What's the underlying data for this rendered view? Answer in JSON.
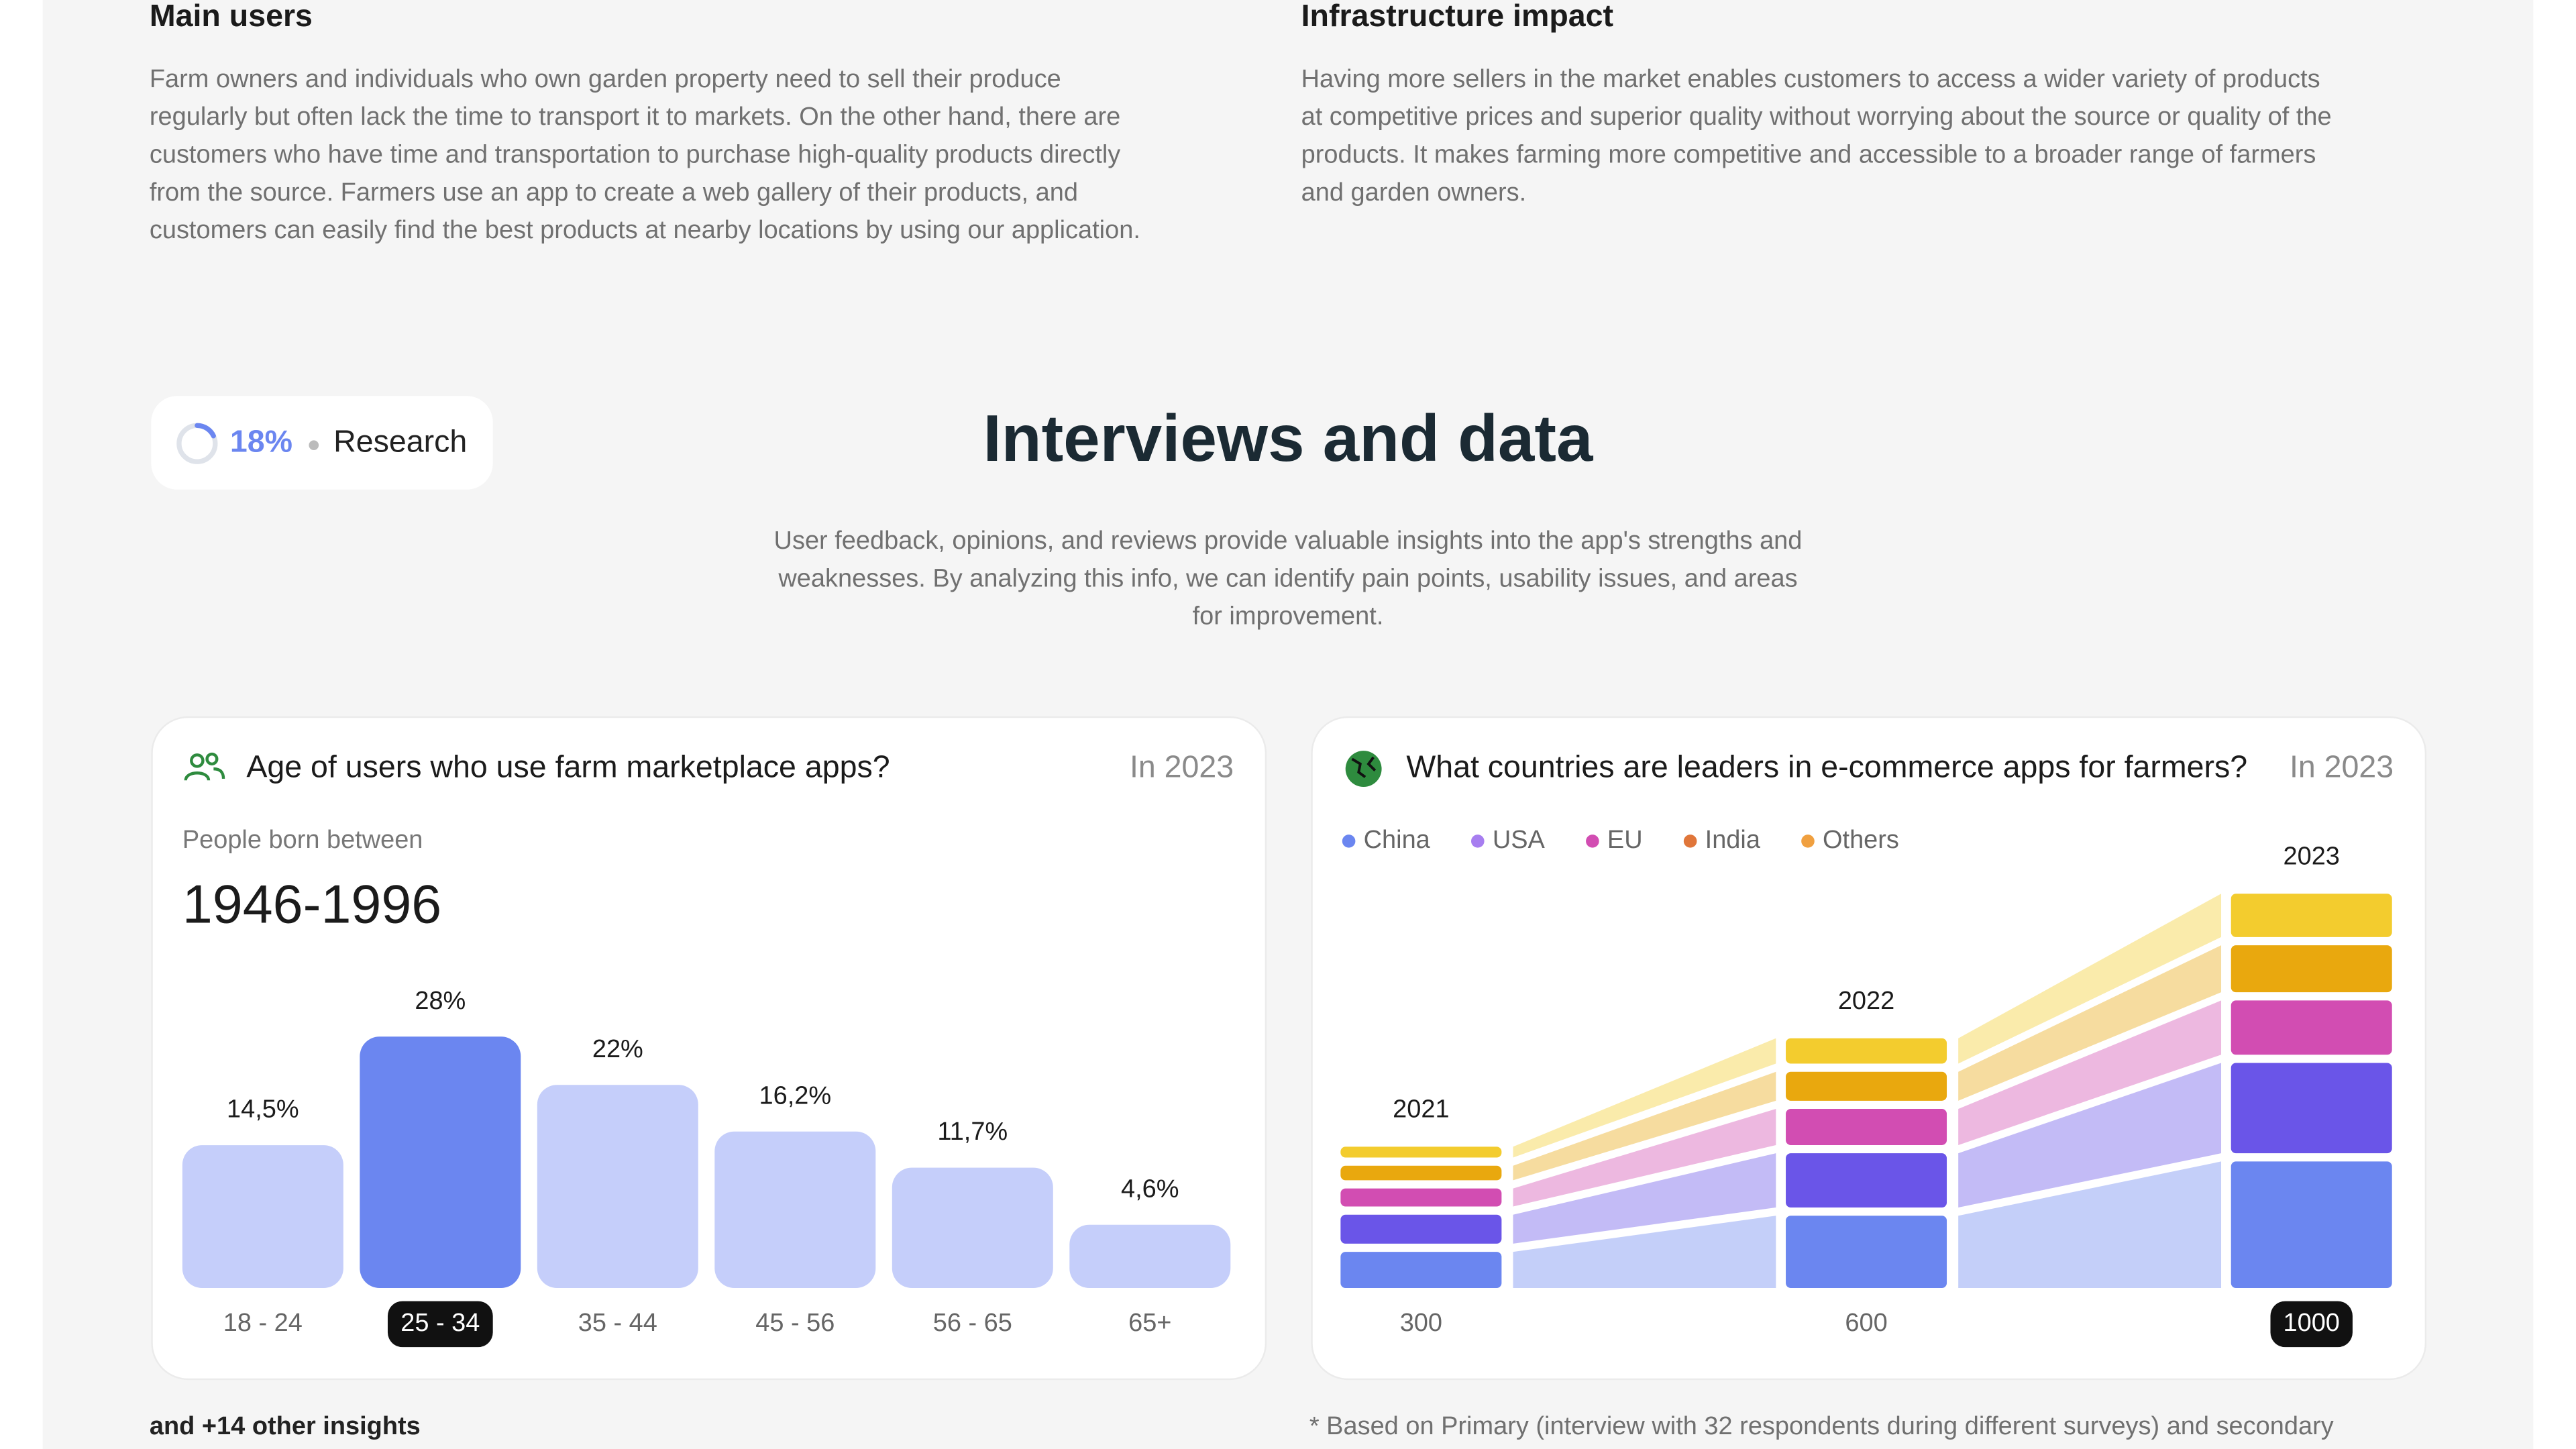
{
  "sections": [
    {
      "title": "Main users",
      "text": "Farm owners and individuals who own garden property need to sell their produce regularly but often lack the time to transport it to markets. On the other hand, there are customers who have time and transportation to purchase high-quality products directly from the source. Farmers use an app to create a web gallery of their products, and customers can easily find the best products at nearby locations by using our application."
    },
    {
      "title": "Infrastructure impact",
      "text": "Having more sellers in the market enables customers to access a wider variety of products at competitive prices and superior quality without worrying about the source or quality of the products. It makes farming more competitive and accessible to a broader range of farmers and garden owners."
    }
  ],
  "research": {
    "progress": 18,
    "progress_label": "18%",
    "label": "Research"
  },
  "heading": {
    "title": "Interviews and data",
    "text": "User feedback, opinions, and reviews provide valuable insights into the app's strengths and weaknesses. By analyzing this info, we can identify pain points, usability issues, and areas for improvement."
  },
  "chart_data": [
    {
      "type": "bar",
      "title": "Age of users who use farm marketplace apps?",
      "period": "In 2023",
      "subtitle": "People born between",
      "highlight_text": "1946-1996",
      "categories": [
        "18 - 24",
        "25 - 34",
        "35 - 44",
        "45 - 56",
        "56 - 65",
        "65+"
      ],
      "values": [
        14.5,
        28,
        22,
        16.2,
        11.7,
        4.6
      ],
      "value_labels": [
        "14,5%",
        "28%",
        "22%",
        "16,2%",
        "11,7%",
        "4,6%"
      ],
      "color": "#c5cefa",
      "selected_color": "#6b86f0",
      "selected": 1
    },
    {
      "type": "stacked_bar",
      "title": "What countries are leaders in e-commerce apps for farmers?",
      "period": "In 2023",
      "categories": [
        "2021",
        "2022",
        "2023"
      ],
      "totals": [
        300,
        600,
        1000
      ],
      "series": [
        {
          "name": "China",
          "color": "#6b86f0",
          "values": [
            100,
            200,
            350
          ]
        },
        {
          "name": "USA",
          "color": "#6a55e8",
          "values": [
            80,
            150,
            250
          ]
        },
        {
          "name": "EU",
          "color": "#d24db2",
          "values": [
            50,
            100,
            150
          ]
        },
        {
          "name": "India",
          "color": "#e9a80e",
          "values": [
            40,
            80,
            130
          ]
        },
        {
          "name": "Others",
          "color": "#f3cc2e",
          "values": [
            30,
            70,
            120
          ]
        }
      ],
      "legend_colors": [
        "#6b86f0",
        "#a77ef0",
        "#d24db2",
        "#e0763a",
        "#f0a040"
      ],
      "selected": 2
    }
  ],
  "more_insights": "and +14 other insights",
  "footnote": "* Based on Primary (interview with 32 respondents during different surveys) and secondary"
}
